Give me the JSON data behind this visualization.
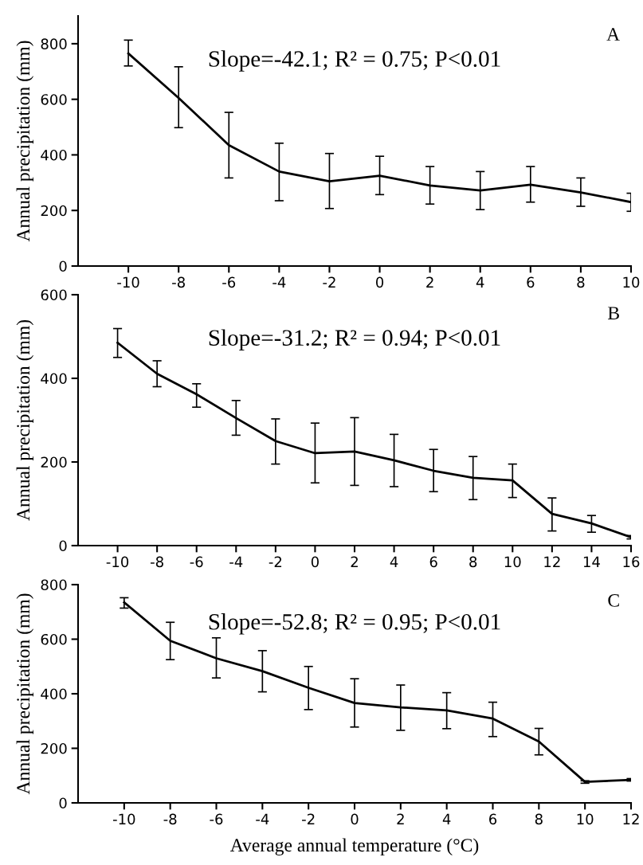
{
  "chart_data": [
    {
      "type": "line",
      "ylabel": "Annual precipitation (mm)",
      "annotations": [
        "Slope=-42.1; R² = 0.75; P<0.01",
        "A"
      ],
      "x": [
        -10,
        -8,
        -6,
        -4,
        -2,
        0,
        2,
        4,
        6,
        8,
        10
      ],
      "series": [
        {
          "color": "#000000",
          "values": [
            765,
            605,
            435,
            340,
            305,
            325,
            290,
            272,
            293,
            265,
            230
          ],
          "errors": [
            [
              720,
              813
            ],
            [
              498,
              717
            ],
            [
              317,
              553
            ],
            [
              235,
              442
            ],
            [
              207,
              405
            ],
            [
              257,
              395
            ],
            [
              223,
              358
            ],
            [
              203,
              340
            ],
            [
              230,
              358
            ],
            [
              215,
              317
            ],
            [
              197,
              262
            ]
          ]
        }
      ],
      "xlim": [
        -12,
        10
      ],
      "xticks": [
        -10,
        -8,
        -6,
        -4,
        -2,
        0,
        2,
        4,
        6,
        8,
        10
      ],
      "ylim": [
        0,
        900
      ],
      "yticks": [
        0,
        200,
        400,
        600,
        800
      ],
      "grid": false,
      "marker": "none",
      "line_style": "solid"
    },
    {
      "type": "line",
      "ylabel": "Annual precipitation (mm)",
      "annotations": [
        "Slope=-31.2; R² = 0.94; P<0.01",
        "B"
      ],
      "x": [
        -10,
        -8,
        -6,
        -4,
        -2,
        0,
        2,
        4,
        6,
        8,
        10,
        12,
        14,
        16
      ],
      "series": [
        {
          "color": "#000000",
          "values": [
            485,
            411,
            362,
            305,
            250,
            221,
            225,
            204,
            179,
            162,
            156,
            76,
            53,
            20
          ],
          "errors": [
            [
              450,
              519
            ],
            [
              380,
              442
            ],
            [
              331,
              387
            ],
            [
              264,
              347
            ],
            [
              195,
              303
            ],
            [
              150,
              293
            ],
            [
              144,
              306
            ],
            [
              141,
              266
            ],
            [
              129,
              230
            ],
            [
              110,
              213
            ],
            [
              115,
              195
            ],
            [
              35,
              114
            ],
            [
              32,
              72
            ],
            [
              16,
              24
            ]
          ]
        }
      ],
      "xlim": [
        -12,
        16
      ],
      "xticks": [
        -10,
        -8,
        -6,
        -4,
        -2,
        0,
        2,
        4,
        6,
        8,
        10,
        12,
        14,
        16
      ],
      "ylim": [
        0,
        600
      ],
      "yticks": [
        0,
        200,
        400,
        600
      ],
      "grid": false,
      "marker": "none",
      "line_style": "solid"
    },
    {
      "type": "line",
      "xlabel": "Average annual temperature (°C)",
      "ylabel": "Annual precipitation (mm)",
      "annotations": [
        "Slope=-52.8; R² = 0.95; P<0.01",
        "C"
      ],
      "x": [
        -10,
        -8,
        -6,
        -4,
        -2,
        0,
        2,
        4,
        6,
        8,
        10,
        12
      ],
      "series": [
        {
          "color": "#000000",
          "values": [
            735,
            594,
            530,
            483,
            422,
            366,
            350,
            339,
            309,
            225,
            77,
            84
          ],
          "errors": [
            [
              714,
              752
            ],
            [
              525,
              662
            ],
            [
              458,
              605
            ],
            [
              407,
              558
            ],
            [
              342,
              500
            ],
            [
              278,
              455
            ],
            [
              266,
              432
            ],
            [
              272,
              404
            ],
            [
              243,
              369
            ],
            [
              176,
              273
            ],
            [
              72,
              81
            ],
            [
              80,
              89
            ]
          ]
        }
      ],
      "xlim": [
        -12,
        12
      ],
      "xticks": [
        -10,
        -8,
        -6,
        -4,
        -2,
        0,
        2,
        4,
        6,
        8,
        10,
        12
      ],
      "ylim": [
        0,
        800
      ],
      "yticks": [
        0,
        200,
        400,
        600,
        800
      ],
      "grid": false,
      "marker": "none",
      "line_style": "solid"
    }
  ]
}
